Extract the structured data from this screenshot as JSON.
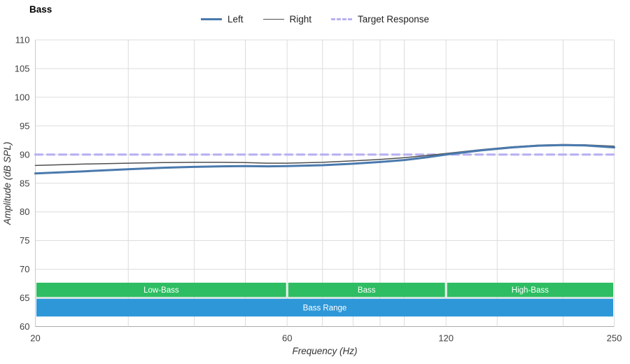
{
  "title": "Bass",
  "legend": {
    "items": [
      {
        "label": "Left",
        "color": "#4a79ad",
        "dash": false,
        "thickness": 3.5
      },
      {
        "label": "Right",
        "color": "#4f4f4f",
        "dash": false,
        "thickness": 1.5
      },
      {
        "label": "Target Response",
        "color": "#b7b0f2",
        "dash": true,
        "thickness": 3
      }
    ]
  },
  "chart_data": {
    "type": "line",
    "title": "Bass",
    "x_scale": "log",
    "xlabel": "Frequency (Hz)",
    "ylabel": "Amplitude (dB SPL)",
    "xlim": [
      20,
      250
    ],
    "ylim": [
      60,
      110
    ],
    "x_ticks_labeled": [
      20,
      60,
      120,
      250
    ],
    "x_gridlines": [
      20,
      30,
      40,
      50,
      60,
      70,
      80,
      90,
      100,
      120,
      150,
      200,
      250
    ],
    "y_ticks": [
      60,
      65,
      70,
      75,
      80,
      85,
      90,
      95,
      100,
      105,
      110
    ],
    "grid_color": "#dcdcdc",
    "axis_color": "#aaaaaa",
    "series": [
      {
        "name": "Left",
        "color": "#4a79ad",
        "width": 3,
        "dash": null,
        "x": [
          20,
          25,
          30,
          35,
          40,
          45,
          50,
          55,
          60,
          70,
          80,
          90,
          100,
          110,
          120,
          140,
          160,
          180,
          200,
          220,
          250
        ],
        "y": [
          86.7,
          87.1,
          87.45,
          87.7,
          87.85,
          87.95,
          88.0,
          87.95,
          88.0,
          88.15,
          88.4,
          88.7,
          89.05,
          89.5,
          90.0,
          90.75,
          91.25,
          91.55,
          91.65,
          91.6,
          91.25
        ]
      },
      {
        "name": "Right",
        "color": "#4f4f4f",
        "width": 1.5,
        "dash": null,
        "x": [
          20,
          25,
          30,
          35,
          40,
          45,
          50,
          55,
          60,
          70,
          80,
          90,
          100,
          110,
          120,
          140,
          160,
          180,
          200,
          220,
          250
        ],
        "y": [
          88.1,
          88.35,
          88.5,
          88.6,
          88.65,
          88.65,
          88.6,
          88.5,
          88.5,
          88.65,
          88.9,
          89.15,
          89.45,
          89.8,
          90.2,
          90.85,
          91.35,
          91.65,
          91.75,
          91.7,
          91.45
        ]
      },
      {
        "name": "Target Response",
        "color": "#b7b0f2",
        "width": 3.2,
        "dash": "10 7",
        "x": [
          20,
          250
        ],
        "y": [
          90,
          90
        ]
      }
    ],
    "bands": [
      {
        "label": "Low-Bass",
        "x": [
          20,
          60
        ],
        "y": [
          65.15,
          67.65
        ],
        "color": "#2ebd62",
        "text_color": "#ffffff"
      },
      {
        "label": "Bass",
        "x": [
          60,
          120
        ],
        "y": [
          65.15,
          67.65
        ],
        "color": "#2ebd62",
        "text_color": "#ffffff"
      },
      {
        "label": "High-Bass",
        "x": [
          120,
          250
        ],
        "y": [
          65.15,
          67.65
        ],
        "color": "#2ebd62",
        "text_color": "#ffffff"
      },
      {
        "label": "Bass Range",
        "x": [
          20,
          250
        ],
        "y": [
          61.75,
          64.85
        ],
        "color": "#2e97d8",
        "text_color": "#ffffff"
      }
    ]
  }
}
